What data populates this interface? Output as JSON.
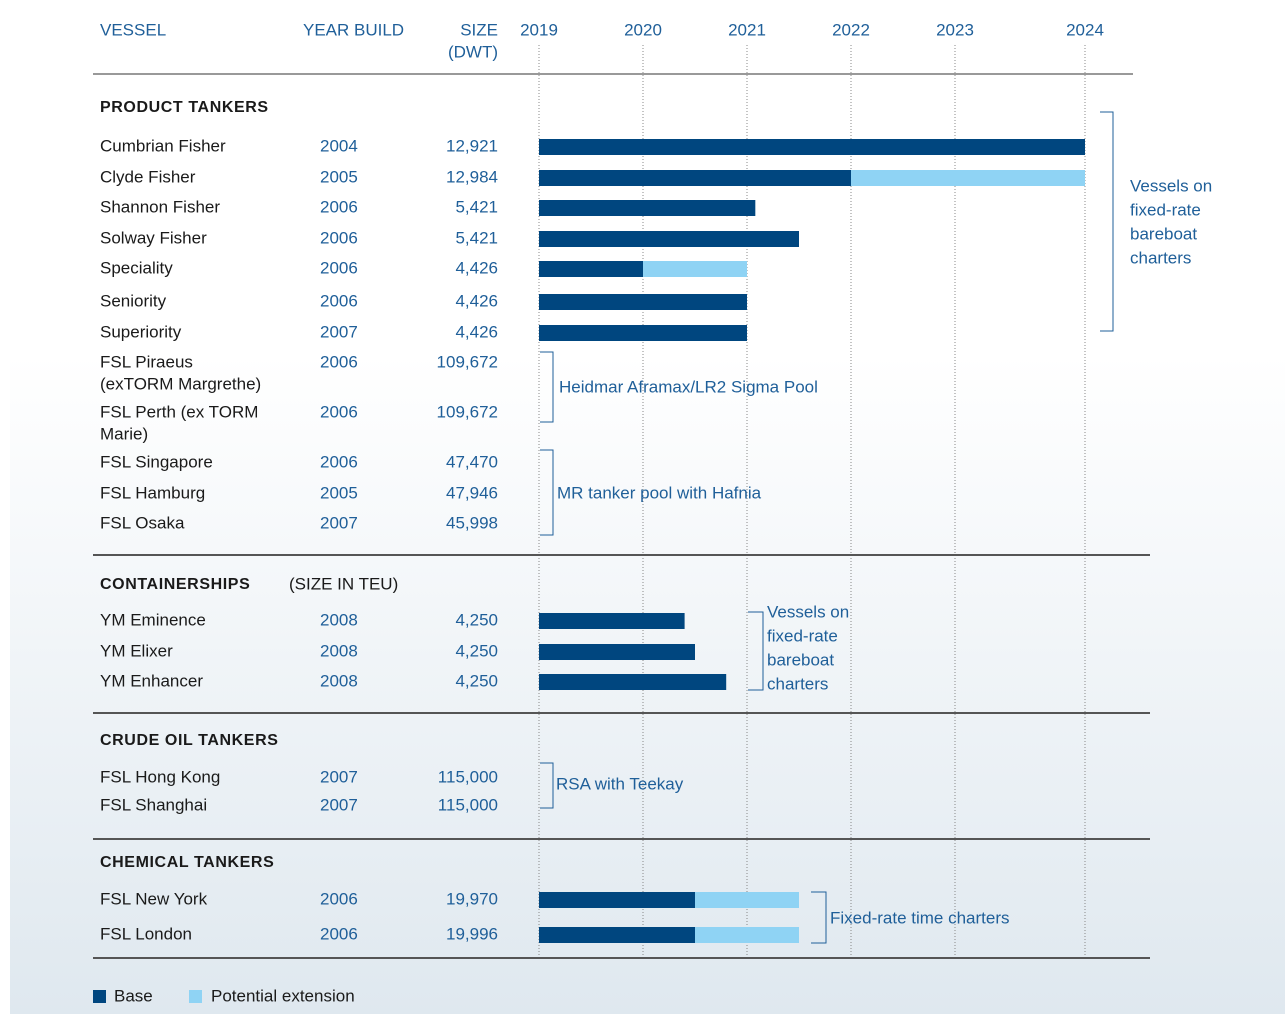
{
  "chart_data": {
    "type": "timeline",
    "columns": {
      "vessel": "VESSEL",
      "year": "YEAR BUILD",
      "size": "SIZE",
      "size_unit": "(DWT)"
    },
    "xlim": [
      2019,
      2024.25
    ],
    "xticks": [
      2019,
      2020,
      2021,
      2022,
      2023,
      {
        "value": 2024.25,
        "label": "2024"
      }
    ],
    "colors": {
      "base": "#00467f",
      "extension": "#8fd3f4"
    },
    "legend": {
      "base": "Base",
      "extension": "Potential extension"
    },
    "sections": [
      {
        "title": "PRODUCT TANKERS",
        "rows": [
          {
            "name": "Cumbrian Fisher",
            "year": 2004,
            "size": {
              "value": 12921,
              "label": "12,921"
            },
            "base": 2024.25
          },
          {
            "name": "Clyde Fisher",
            "year": 2005,
            "size": {
              "value": 12984,
              "label": "12,984"
            },
            "base": 2022,
            "extension": 2024.25
          },
          {
            "name": "Shannon Fisher",
            "year": 2006,
            "size": {
              "value": 5421,
              "label": "5,421"
            },
            "base": 2021.08
          },
          {
            "name": "Solway Fisher",
            "year": 2006,
            "size": {
              "value": 5421,
              "label": "5,421"
            },
            "base": 2021.5
          },
          {
            "name": "Speciality",
            "year": 2006,
            "size": {
              "value": 4426,
              "label": "4,426"
            },
            "base": 2020,
            "extension": 2021
          },
          {
            "name": "Seniority",
            "year": 2006,
            "size": {
              "value": 4426,
              "label": "4,426"
            },
            "base": 2021
          },
          {
            "name": "Superiority",
            "year": 2007,
            "size": {
              "value": 4426,
              "label": "4,426"
            },
            "base": 2021
          },
          {
            "name": [
              "FSL Piraeus",
              "(exTORM Margrethe)"
            ],
            "year": 2006,
            "size": {
              "value": 109672,
              "label": "109,672"
            }
          },
          {
            "name": [
              "FSL Perth (ex TORM",
              "Marie)"
            ],
            "year": 2006,
            "size": {
              "value": 109672,
              "label": "109,672"
            }
          },
          {
            "name": "FSL Singapore",
            "year": 2006,
            "size": {
              "value": 47470,
              "label": "47,470"
            }
          },
          {
            "name": "FSL Hamburg",
            "year": 2005,
            "size": {
              "value": 47946,
              "label": "47,946"
            }
          },
          {
            "name": "FSL Osaka",
            "year": 2007,
            "size": {
              "value": 45998,
              "label": "45,998"
            }
          }
        ],
        "brackets": [
          [
            "Vessels on",
            "fixed-rate",
            "bareboat",
            "charters"
          ],
          [
            "Heidmar Aframax/LR2 Sigma Pool"
          ],
          [
            "MR tanker pool with Hafnia"
          ]
        ]
      },
      {
        "title": "CONTAINERSHIPS",
        "subtitle": "(SIZE IN TEU)",
        "rows": [
          {
            "name": "YM Eminence",
            "year": 2008,
            "size": {
              "value": 4250,
              "label": "4,250"
            },
            "base": 2020.4
          },
          {
            "name": "YM Elixer",
            "year": 2008,
            "size": {
              "value": 4250,
              "label": "4,250"
            },
            "base": 2020.5
          },
          {
            "name": "YM Enhancer",
            "year": 2008,
            "size": {
              "value": 4250,
              "label": "4,250"
            },
            "base": 2020.8
          }
        ],
        "brackets": [
          [
            "Vessels on",
            "fixed-rate",
            "bareboat",
            "charters"
          ]
        ]
      },
      {
        "title": "CRUDE OIL TANKERS",
        "rows": [
          {
            "name": "FSL Hong Kong",
            "year": 2007,
            "size": {
              "value": 115000,
              "label": "115,000"
            }
          },
          {
            "name": "FSL Shanghai",
            "year": 2007,
            "size": {
              "value": 115000,
              "label": "115,000"
            }
          }
        ],
        "brackets": [
          [
            "RSA with Teekay"
          ]
        ]
      },
      {
        "title": "CHEMICAL TANKERS",
        "rows": [
          {
            "name": "FSL New York",
            "year": 2006,
            "size": {
              "value": 19970,
              "label": "19,970"
            },
            "base": 2020.5,
            "extension": 2021.5
          },
          {
            "name": "FSL London",
            "year": 2006,
            "size": {
              "value": 19996,
              "label": "19,996"
            },
            "base": 2020.5,
            "extension": 2021.5
          }
        ],
        "brackets": [
          [
            "Fixed-rate time charters"
          ]
        ]
      }
    ]
  }
}
